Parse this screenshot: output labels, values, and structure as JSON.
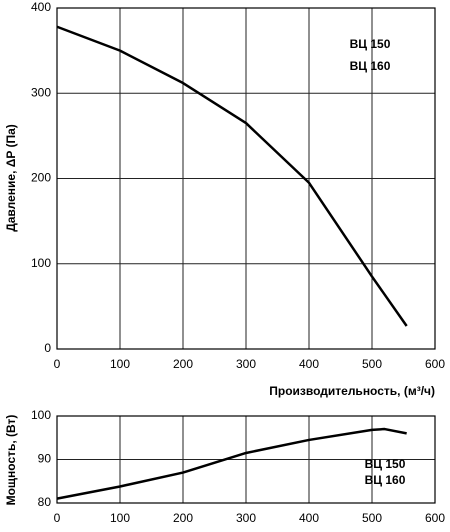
{
  "chart_data": [
    {
      "type": "line",
      "xlabel": "Производительность, (м³/ч)",
      "ylabel": "Давление, ΔP (Па)",
      "annotations": [
        "ВЦ 150",
        "ВЦ 160"
      ],
      "xlim": [
        0,
        600
      ],
      "xticks": [
        0,
        100,
        200,
        300,
        400,
        500,
        600
      ],
      "ylim": [
        0,
        400
      ],
      "yticks": [
        0,
        100,
        200,
        300,
        400
      ],
      "grid": true,
      "series": [
        {
          "color": "#000000",
          "x": [
            0,
            100,
            200,
            300,
            400,
            500,
            555
          ],
          "values": [
            378,
            350,
            312,
            265,
            195,
            85,
            27
          ]
        }
      ]
    },
    {
      "type": "line",
      "ylabel": "Мощность, (Вт)",
      "annotations": [
        "ВЦ 150",
        "ВЦ 160"
      ],
      "xlim": [
        0,
        600
      ],
      "xticks": [
        0,
        100,
        200,
        300,
        400,
        500,
        600
      ],
      "ylim": [
        80,
        100
      ],
      "yticks": [
        80,
        90,
        100
      ],
      "grid": true,
      "series": [
        {
          "color": "#000000",
          "x": [
            0,
            100,
            200,
            300,
            400,
            500,
            520,
            555
          ],
          "values": [
            81,
            83.8,
            87,
            91.5,
            94.5,
            96.8,
            97,
            96
          ]
        }
      ]
    }
  ]
}
